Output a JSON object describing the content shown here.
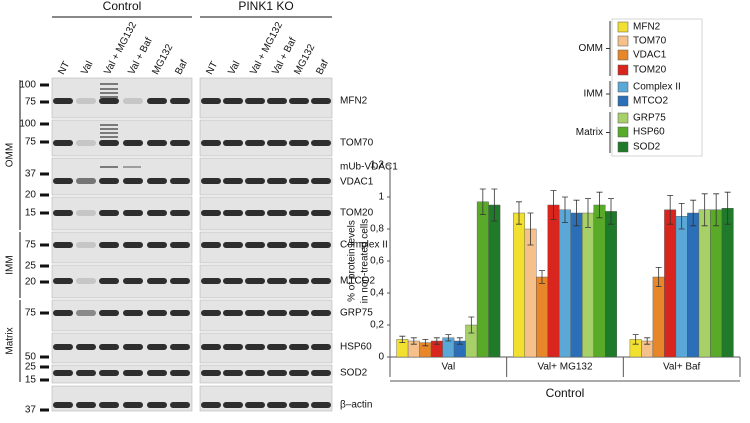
{
  "blot": {
    "groups": [
      "Control",
      "PINK1 KO"
    ],
    "lanes": [
      "NT",
      "Val",
      "Val + MG132",
      "Val + Baf",
      "MG132",
      "Baf"
    ],
    "proteins": [
      "MFN2",
      "TOM70",
      "mUb-VDAC1",
      "VDAC1",
      "TOM20",
      "Complex II",
      "MTCO2",
      "GRP75",
      "HSP60",
      "SOD2",
      "β–actin"
    ],
    "compartments": [
      "OMM",
      "IMM",
      "Matrix"
    ],
    "mw_markers": [
      "100",
      "75",
      "100",
      "75",
      "37",
      "20",
      "15",
      "75",
      "25",
      "20",
      "75",
      "50",
      "25",
      "15",
      "37"
    ]
  },
  "chart_data": {
    "type": "bar",
    "y_label": [
      "% of protein levels",
      "in non-treated cells"
    ],
    "x_label": "Control",
    "categories": [
      "Val",
      "Val+ MG132",
      "Val+ Baf"
    ],
    "legend_groups": [
      "OMM",
      "IMM",
      "Matrix"
    ],
    "series": [
      {
        "name": "MFN2",
        "color": "#f2e030",
        "values": [
          0.11,
          0.9,
          0.11
        ],
        "errors": [
          0.02,
          0.07,
          0.03
        ]
      },
      {
        "name": "TOM70",
        "color": "#f5c08a",
        "values": [
          0.1,
          0.8,
          0.1
        ],
        "errors": [
          0.02,
          0.1,
          0.02
        ]
      },
      {
        "name": "VDAC1",
        "color": "#e8862a",
        "values": [
          0.09,
          0.5,
          0.5
        ],
        "errors": [
          0.02,
          0.04,
          0.06
        ]
      },
      {
        "name": "TOM20",
        "color": "#d8261f",
        "values": [
          0.1,
          0.95,
          0.92
        ],
        "errors": [
          0.02,
          0.09,
          0.09
        ]
      },
      {
        "name": "Complex II",
        "color": "#5aa8d8",
        "values": [
          0.12,
          0.92,
          0.88
        ],
        "errors": [
          0.02,
          0.08,
          0.08
        ]
      },
      {
        "name": "MTCO2",
        "color": "#2a6fb8",
        "values": [
          0.1,
          0.9,
          0.9
        ],
        "errors": [
          0.02,
          0.08,
          0.08
        ]
      },
      {
        "name": "GRP75",
        "color": "#a8d068",
        "values": [
          0.2,
          0.9,
          0.92
        ],
        "errors": [
          0.05,
          0.09,
          0.1
        ]
      },
      {
        "name": "HSP60",
        "color": "#5aaa2a",
        "values": [
          0.97,
          0.95,
          0.92
        ],
        "errors": [
          0.08,
          0.08,
          0.1
        ]
      },
      {
        "name": "SOD2",
        "color": "#1f7a2a",
        "values": [
          0.95,
          0.91,
          0.93
        ],
        "errors": [
          0.1,
          0.08,
          0.1
        ]
      }
    ],
    "ylim": [
      0,
      1.2
    ],
    "yticks": [
      0,
      {
        "value": 0.2,
        "label": "0,2"
      },
      {
        "value": 0.4,
        "label": "0,4"
      },
      {
        "value": 0.6,
        "label": "0,6"
      },
      {
        "value": 0.8,
        "label": "0,8"
      },
      1,
      {
        "value": 1.2,
        "label": "1,2"
      }
    ]
  }
}
